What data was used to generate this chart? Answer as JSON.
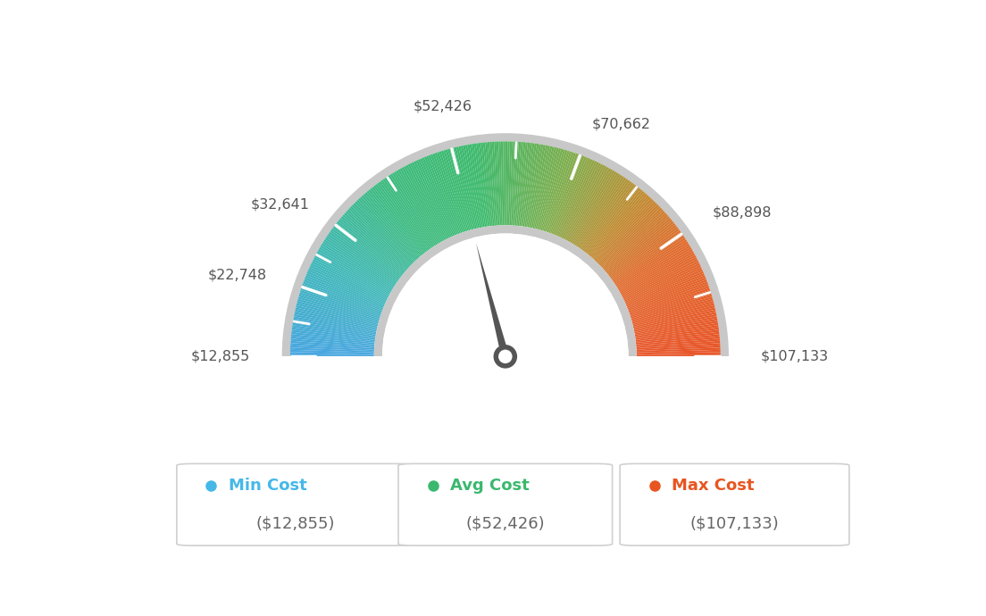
{
  "min_value": 12855,
  "max_value": 107133,
  "avg_value": 52426,
  "labels": [
    "$12,855",
    "$22,748",
    "$32,641",
    "$52,426",
    "$70,662",
    "$88,898",
    "$107,133"
  ],
  "label_values": [
    12855,
    22748,
    32641,
    52426,
    70662,
    88898,
    107133
  ],
  "min_cost_label": "Min Cost",
  "avg_cost_label": "Avg Cost",
  "max_cost_label": "Max Cost",
  "min_cost_value": "($12,855)",
  "avg_cost_value": "($52,426)",
  "max_cost_value": "($107,133)",
  "min_color": "#45b8e8",
  "avg_color": "#3ab86e",
  "max_color": "#e85520",
  "background_color": "#ffffff",
  "needle_value": 52426,
  "gradient_colors": [
    [
      0.0,
      [
        0.28,
        0.65,
        0.88
      ]
    ],
    [
      0.15,
      [
        0.25,
        0.72,
        0.72
      ]
    ],
    [
      0.3,
      [
        0.24,
        0.73,
        0.5
      ]
    ],
    [
      0.45,
      [
        0.24,
        0.73,
        0.43
      ]
    ],
    [
      0.6,
      [
        0.5,
        0.68,
        0.3
      ]
    ],
    [
      0.72,
      [
        0.75,
        0.55,
        0.2
      ]
    ],
    [
      0.82,
      [
        0.88,
        0.42,
        0.18
      ]
    ],
    [
      1.0,
      [
        0.91,
        0.33,
        0.16
      ]
    ]
  ],
  "tick_major_values": [
    12855,
    22748,
    32641,
    52426,
    70662,
    88898,
    107133
  ],
  "hub_color": "#555555",
  "hub_inner_color": "#ffffff",
  "needle_color": "#555555",
  "outer_ring_color": "#cccccc",
  "inner_ring_color": "#cccccc"
}
